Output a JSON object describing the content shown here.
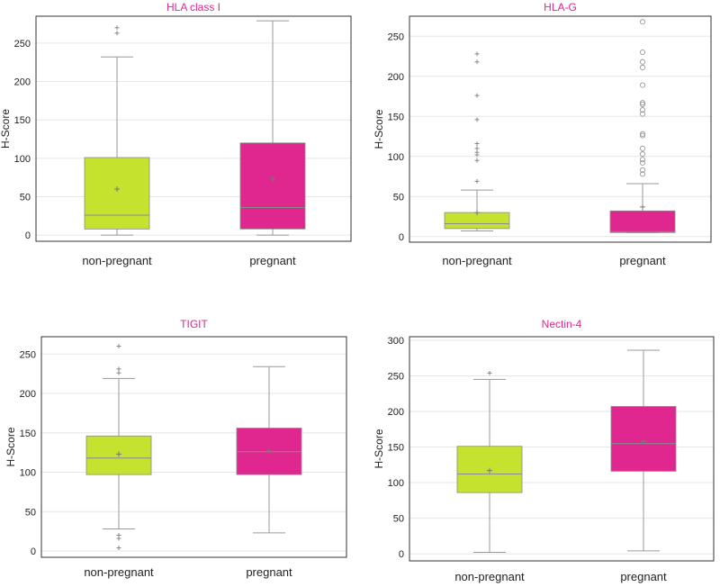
{
  "colors": {
    "non_pregnant": "#c5e22f",
    "pregnant": "#e0278f",
    "title": "#e0278f",
    "whisker": "#9a9a9a",
    "grid": "#e6e6e6",
    "frame": "#333333"
  },
  "chart_data": [
    {
      "type": "box",
      "title": "HLA class I",
      "ylabel": "H-Score",
      "categories": [
        "non-pregnant",
        "pregnant"
      ],
      "ylim": [
        -8,
        285
      ],
      "yticks": [
        0,
        50,
        100,
        150,
        200,
        250
      ],
      "grid": true,
      "boxes": [
        {
          "name": "non-pregnant",
          "min": 0,
          "q1": 8,
          "median": 26,
          "q3": 101,
          "max": 232,
          "mean": 60,
          "outliers": [
            263,
            270
          ],
          "outlier_marker": "plus"
        },
        {
          "name": "pregnant",
          "min": 0,
          "q1": 8,
          "median": 36,
          "q3": 120,
          "max": 279,
          "mean": 73,
          "outliers": [],
          "outlier_marker": "plus"
        }
      ]
    },
    {
      "type": "box",
      "title": "HLA-G",
      "ylabel": "H-Score",
      "categories": [
        "non-pregnant",
        "pregnant"
      ],
      "ylim": [
        -7,
        275
      ],
      "yticks": [
        0,
        50,
        100,
        150,
        200,
        250
      ],
      "grid": true,
      "boxes": [
        {
          "name": "non-pregnant",
          "min": 7,
          "q1": 10,
          "median": 16,
          "q3": 30,
          "max": 58,
          "mean": 30,
          "outliers": [
            69,
            95,
            102,
            105,
            110,
            116,
            146,
            176,
            218,
            228
          ],
          "outlier_marker": "plus"
        },
        {
          "name": "pregnant",
          "min": 5,
          "q1": 5,
          "median": 6,
          "q3": 32,
          "max": 66,
          "mean": 37,
          "outliers": [
            78,
            83,
            92,
            96,
            103,
            110,
            126,
            128,
            153,
            158,
            165,
            167,
            189,
            211,
            218,
            230,
            268
          ],
          "outlier_marker": "circle"
        }
      ]
    },
    {
      "type": "box",
      "title": "TIGIT",
      "ylabel": "H-Score",
      "categories": [
        "non-pregnant",
        "pregnant"
      ],
      "ylim": [
        -8,
        272
      ],
      "yticks": [
        0,
        50,
        100,
        150,
        200,
        250
      ],
      "grid": true,
      "boxes": [
        {
          "name": "non-pregnant",
          "min": 28,
          "q1": 97,
          "median": 118,
          "q3": 146,
          "max": 219,
          "mean": 123,
          "outliers": [
            4,
            16,
            20,
            226,
            231,
            260
          ],
          "outlier_marker": "plus"
        },
        {
          "name": "pregnant",
          "min": 23,
          "q1": 97,
          "median": 126,
          "q3": 156,
          "max": 234,
          "mean": 127,
          "outliers": [],
          "outlier_marker": "plus"
        }
      ]
    },
    {
      "type": "box",
      "title": "Nectin-4",
      "ylabel": "H-Score",
      "categories": [
        "non-pregnant",
        "pregnant"
      ],
      "ylim": [
        -10,
        305
      ],
      "yticks": [
        0,
        50,
        100,
        150,
        200,
        250,
        300
      ],
      "grid": true,
      "boxes": [
        {
          "name": "non-pregnant",
          "min": 2,
          "q1": 86,
          "median": 112,
          "q3": 151,
          "max": 245,
          "mean": 117,
          "outliers": [
            254
          ],
          "outlier_marker": "plus"
        },
        {
          "name": "pregnant",
          "min": 4,
          "q1": 116,
          "median": 155,
          "q3": 207,
          "max": 286,
          "mean": 158,
          "outliers": [],
          "outlier_marker": "plus"
        }
      ]
    }
  ]
}
